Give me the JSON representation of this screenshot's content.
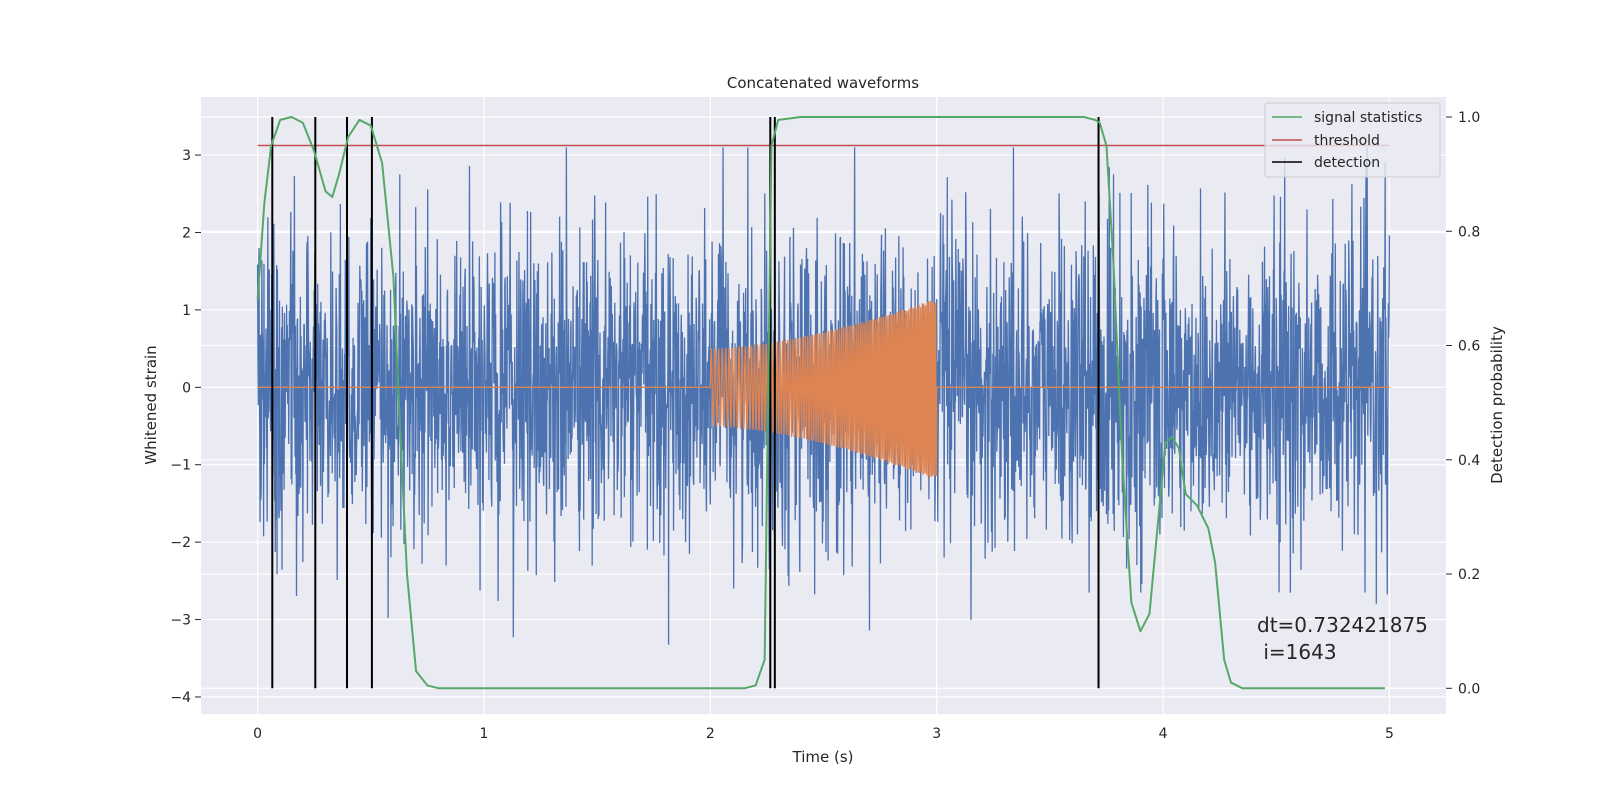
{
  "chart_data": {
    "type": "line",
    "title": "Concatenated waveforms",
    "xlabel": "Time (s)",
    "ylabel": "Whitened strain",
    "y2label": "Detection probability",
    "xlim": [
      -0.25,
      5.25
    ],
    "ylim": [
      -4.22,
      3.75
    ],
    "y2lim": [
      -0.045,
      1.035
    ],
    "xticks": [
      0,
      1,
      2,
      3,
      4,
      5
    ],
    "xtick_labels": [
      "0",
      "1",
      "2",
      "3",
      "4",
      "5"
    ],
    "yticks": [
      -4,
      -3,
      -2,
      -1,
      0,
      1,
      2,
      3
    ],
    "ytick_labels": [
      "−4",
      "−3",
      "−2",
      "−1",
      "0",
      "1",
      "2",
      "3"
    ],
    "y2ticks": [
      0.0,
      0.2,
      0.4,
      0.6,
      0.8,
      1.0
    ],
    "y2tick_labels": [
      "0.0",
      "0.2",
      "0.4",
      "0.6",
      "0.8",
      "1.0"
    ],
    "grid": true,
    "legend_position": "top-right",
    "colors": {
      "background": "#eaeaf2",
      "grid": "#ffffff",
      "noise": "#4c72b0",
      "chirp": "#dd8452",
      "signal_statistics": "#55a868",
      "threshold": "#c44e52",
      "detection": "#000000"
    },
    "series": [
      {
        "name": "",
        "axis": "left",
        "kind": "whitened strain noise",
        "x_range": [
          0,
          5
        ],
        "amplitude_typical": 1.0,
        "y_min": -3.65,
        "y_max": 3.1
      },
      {
        "name": "",
        "axis": "left",
        "kind": "chirp waveform",
        "baseline": 0,
        "chirp_start": 2.0,
        "chirp_end": 3.0,
        "amp_start_top": 0.5,
        "amp_end_top": 1.15,
        "amp_start_bottom": -0.5,
        "amp_end_bottom": -1.2
      },
      {
        "name": "signal statistics",
        "axis": "right",
        "x": [
          0.0,
          0.03,
          0.06,
          0.1,
          0.15,
          0.2,
          0.25,
          0.3,
          0.33,
          0.36,
          0.4,
          0.45,
          0.5,
          0.55,
          0.6,
          0.63,
          0.66,
          0.7,
          0.75,
          0.8,
          1.0,
          1.5,
          2.0,
          2.1,
          2.15,
          2.2,
          2.24,
          2.27,
          2.3,
          2.4,
          2.6,
          3.0,
          3.5,
          3.65,
          3.7,
          3.72,
          3.75,
          3.78,
          3.82,
          3.86,
          3.9,
          3.94,
          3.98,
          4.01,
          4.04,
          4.07,
          4.1,
          4.15,
          4.2,
          4.23,
          4.27,
          4.3,
          4.35,
          4.5,
          4.8,
          4.98
        ],
        "values": [
          0.68,
          0.85,
          0.95,
          0.995,
          1.0,
          0.99,
          0.94,
          0.87,
          0.86,
          0.9,
          0.965,
          0.995,
          0.985,
          0.92,
          0.72,
          0.45,
          0.2,
          0.03,
          0.005,
          0.0,
          0.0,
          0.0,
          0.0,
          0.0,
          0.0,
          0.005,
          0.05,
          0.95,
          0.995,
          1.0,
          1.0,
          1.0,
          1.0,
          1.0,
          0.995,
          0.99,
          0.95,
          0.75,
          0.4,
          0.15,
          0.1,
          0.13,
          0.3,
          0.43,
          0.44,
          0.42,
          0.34,
          0.32,
          0.28,
          0.22,
          0.05,
          0.01,
          0.0,
          0.0,
          0.0,
          0.0
        ]
      },
      {
        "name": "threshold",
        "axis": "right",
        "x": [
          0,
          5
        ],
        "values": [
          0.95,
          0.95
        ]
      },
      {
        "name": "detection",
        "axis": "right",
        "vertical_lines_x": [
          0.065,
          0.255,
          0.395,
          0.505,
          2.265,
          2.285,
          3.715
        ],
        "y_range": [
          0.0,
          1.0
        ]
      }
    ],
    "annotations": [
      "dt=0.732421875",
      " i=1643"
    ]
  }
}
